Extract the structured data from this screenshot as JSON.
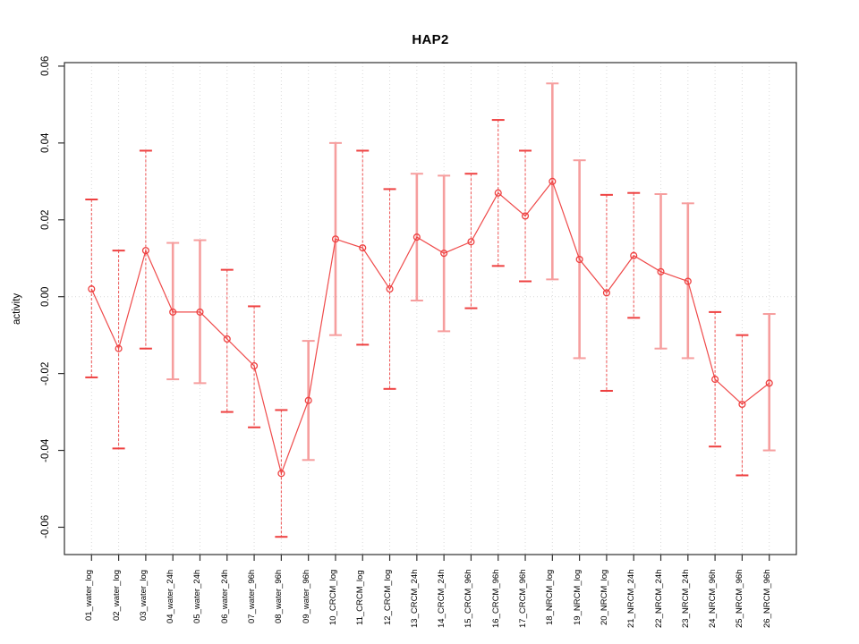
{
  "header": {
    "title": "HAP2"
  },
  "y_axis": {
    "label": "activity",
    "tick_labels": [
      "0.06",
      "0.04",
      "0.02",
      "0.00",
      "-0.02",
      "-0.04",
      "-0.06"
    ]
  },
  "chart_data": {
    "type": "scatter",
    "subtype": "points-with-error-bars",
    "title": "HAP2",
    "xlabel": "",
    "ylabel": "activity",
    "ylim": [
      -0.067,
      0.0615
    ],
    "yticks": [
      0.06,
      0.04,
      0.02,
      0.0,
      -0.02,
      -0.04,
      -0.06
    ],
    "grid": "vertical-dotted-per-category-plus-zero-line",
    "legend": "none",
    "categories": [
      "01_water_log",
      "02_water_log",
      "03_water_log",
      "04_water_24h",
      "05_water_24h",
      "06_water_24h",
      "07_water_96h",
      "08_water_96h",
      "09_water_96h",
      "10_CRCM_log",
      "11_CRCM_log",
      "12_CRCM_log",
      "13_CRCM_24h",
      "14_CRCM_24h",
      "15_CRCM_96h",
      "16_CRCM_96h",
      "17_CRCM_96h",
      "18_NRCM_log",
      "19_NRCM_log",
      "20_NRCM_log",
      "21_NRCM_24h",
      "22_NRCM_24h",
      "23_NRCM_24h",
      "24_NRCM_96h",
      "25_NRCM_96h",
      "26_NRCM_96h"
    ],
    "values": [
      0.002,
      -0.0135,
      0.012,
      -0.004,
      -0.004,
      -0.011,
      -0.018,
      -0.046,
      -0.027,
      0.015,
      0.0127,
      0.002,
      0.0155,
      0.0113,
      0.0143,
      0.027,
      0.021,
      0.03,
      0.0097,
      0.001,
      0.0107,
      0.0065,
      0.004,
      -0.0215,
      -0.028,
      -0.0225
    ],
    "err_low": [
      -0.021,
      -0.0395,
      -0.0135,
      -0.0215,
      -0.0225,
      -0.03,
      -0.034,
      -0.0625,
      -0.0425,
      -0.01,
      -0.0125,
      -0.024,
      -0.001,
      -0.009,
      -0.003,
      0.008,
      0.004,
      0.0045,
      -0.016,
      -0.0245,
      -0.0055,
      -0.0135,
      -0.016,
      -0.039,
      -0.0465,
      -0.04
    ],
    "err_high": [
      0.0253,
      0.012,
      0.038,
      0.014,
      0.0147,
      0.007,
      -0.0025,
      -0.0295,
      -0.0115,
      0.04,
      0.038,
      0.028,
      0.032,
      0.0315,
      0.032,
      0.046,
      0.038,
      0.0555,
      0.0355,
      0.0265,
      0.027,
      0.0267,
      0.0243,
      -0.004,
      -0.01,
      -0.0045
    ],
    "bar_styles": [
      "dashed",
      "dashed",
      "dashed",
      "pink",
      "pink",
      "dashed",
      "dashed",
      "dashed",
      "pink",
      "pink",
      "dashed",
      "dashed",
      "pink",
      "pink",
      "dashed",
      "dashed",
      "dashed",
      "pink",
      "pink",
      "dashed",
      "dashed",
      "pink",
      "pink",
      "dashed",
      "dashed",
      "pink"
    ],
    "colors": {
      "point": "#ee4040",
      "series_line": "#ee4040",
      "error_bar_pink": "#f69e9e",
      "error_bar_dashed": "#ee4040",
      "grid": "#d9d9d9",
      "axis": "#303030"
    }
  }
}
